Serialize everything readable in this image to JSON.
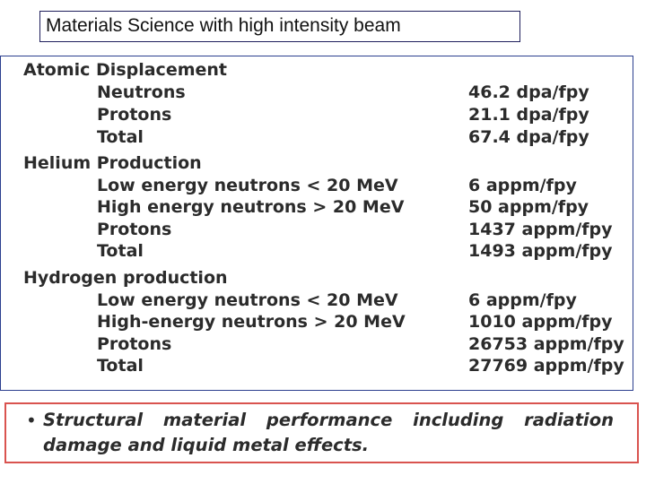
{
  "title": "Materials Science with high intensity beam",
  "sections": [
    {
      "heading": "Atomic Displacement",
      "items": [
        {
          "label": "Neutrons",
          "value": "46.2 dpa/fpy"
        },
        {
          "label": "Protons",
          "value": "21.1 dpa/fpy"
        },
        {
          "label": "Total",
          "value": "67.4 dpa/fpy"
        }
      ]
    },
    {
      "heading": "Helium Production",
      "items": [
        {
          "label": "Low energy neutrons < 20 MeV",
          "value": "6 appm/fpy"
        },
        {
          "label": "High energy neutrons > 20 MeV",
          "value": "50 appm/fpy"
        },
        {
          "label": "Protons",
          "value": "1437 appm/fpy"
        },
        {
          "label": "Total",
          "value": "1493 appm/fpy"
        }
      ]
    },
    {
      "heading": "Hydrogen production",
      "items": [
        {
          "label": "Low energy neutrons < 20 MeV",
          "value": "6 appm/fpy"
        },
        {
          "label": "High-energy neutrons > 20 MeV",
          "value": "1010 appm/fpy"
        },
        {
          "label": "Protons",
          "value": "26753 appm/fpy"
        },
        {
          "label": "Total",
          "value": "27769 appm/fpy"
        }
      ]
    }
  ],
  "bullet": {
    "symbol": "•",
    "text": "Structural material performance including radiation damage and liquid metal effects."
  }
}
